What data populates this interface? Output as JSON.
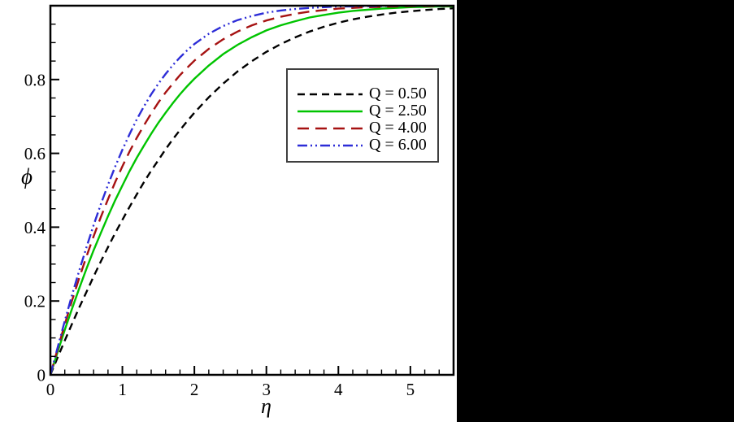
{
  "figure": {
    "background": "#ffffff",
    "side_panel_color": "#000000",
    "axis_color": "#000000"
  },
  "chart_data": {
    "type": "line",
    "title": "",
    "xlabel": "η",
    "ylabel": "ϕ",
    "xlim": [
      0,
      5.6
    ],
    "ylim": [
      0,
      1.0
    ],
    "x_major_ticks": [
      0,
      1,
      2,
      3,
      4,
      5
    ],
    "x_minor_tick_step": 0.2,
    "y_major_ticks": [
      0,
      0.2,
      0.4,
      0.6,
      0.8
    ],
    "y_minor_tick_step": 0.05,
    "grid": false,
    "legend_position": "inside-upper-right",
    "x": [
      0,
      0.1,
      0.2,
      0.3,
      0.4,
      0.5,
      0.6,
      0.7,
      0.8,
      0.9,
      1,
      1.1,
      1.2,
      1.3,
      1.4,
      1.5,
      1.6,
      1.7,
      1.8,
      1.9,
      2,
      2.2,
      2.4,
      2.6,
      2.8,
      3,
      3.2,
      3.4,
      3.6,
      3.8,
      4,
      4.2,
      4.4,
      4.6,
      4.8,
      5,
      5.2,
      5.4,
      5.6
    ],
    "series": [
      {
        "name": "Q = 0.50",
        "color": "#000000",
        "line_style": "dashed",
        "dasharray": "9 6",
        "values": [
          0,
          0.047,
          0.093,
          0.138,
          0.182,
          0.224,
          0.266,
          0.307,
          0.346,
          0.384,
          0.42,
          0.455,
          0.489,
          0.522,
          0.553,
          0.582,
          0.611,
          0.638,
          0.663,
          0.687,
          0.71,
          0.752,
          0.789,
          0.822,
          0.85,
          0.875,
          0.896,
          0.914,
          0.93,
          0.943,
          0.954,
          0.963,
          0.97,
          0.976,
          0.981,
          0.985,
          0.988,
          0.991,
          0.993
        ]
      },
      {
        "name": "Q = 2.50",
        "color": "#00c400",
        "line_style": "solid",
        "dasharray": "",
        "values": [
          0,
          0.062,
          0.122,
          0.179,
          0.234,
          0.287,
          0.337,
          0.384,
          0.43,
          0.473,
          0.513,
          0.552,
          0.588,
          0.621,
          0.653,
          0.683,
          0.71,
          0.736,
          0.76,
          0.782,
          0.802,
          0.838,
          0.869,
          0.894,
          0.915,
          0.933,
          0.947,
          0.958,
          0.968,
          0.975,
          0.981,
          0.986,
          0.989,
          0.992,
          0.994,
          0.996,
          0.997,
          0.998,
          0.998
        ]
      },
      {
        "name": "Q = 4.00",
        "color": "#a61212",
        "line_style": "long-dash",
        "dasharray": "14 8",
        "values": [
          0,
          0.07,
          0.137,
          0.201,
          0.262,
          0.32,
          0.375,
          0.427,
          0.476,
          0.522,
          0.565,
          0.605,
          0.642,
          0.676,
          0.708,
          0.738,
          0.765,
          0.789,
          0.812,
          0.832,
          0.851,
          0.883,
          0.909,
          0.93,
          0.947,
          0.96,
          0.97,
          0.978,
          0.984,
          0.988,
          0.992,
          0.994,
          0.996,
          0.997,
          0.998,
          0.999,
          0.999,
          0.999,
          1
        ]
      },
      {
        "name": "Q = 6.00",
        "color": "#2d2dd7",
        "line_style": "dash-dot-dot",
        "dasharray": "12 4 2 4 2 4",
        "values": [
          0,
          0.074,
          0.146,
          0.216,
          0.282,
          0.345,
          0.405,
          0.462,
          0.515,
          0.564,
          0.61,
          0.652,
          0.692,
          0.727,
          0.76,
          0.789,
          0.815,
          0.839,
          0.86,
          0.879,
          0.896,
          0.924,
          0.945,
          0.961,
          0.972,
          0.981,
          0.987,
          0.991,
          0.994,
          0.996,
          0.998,
          0.998,
          0.999,
          0.999,
          1,
          1,
          1,
          1,
          1
        ]
      }
    ]
  }
}
